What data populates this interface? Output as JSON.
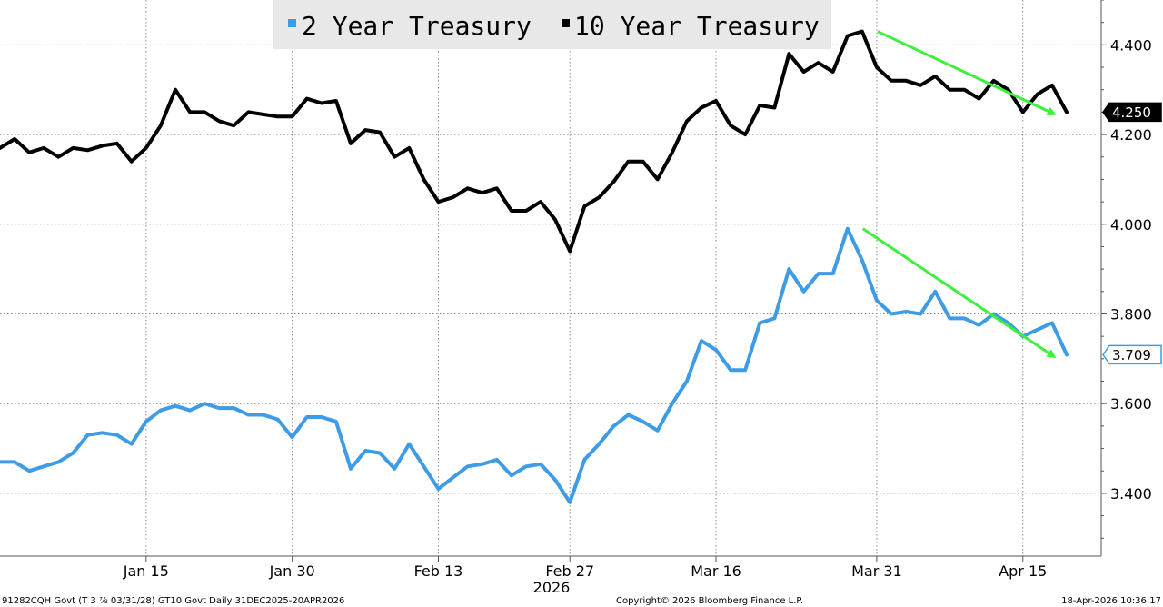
{
  "chart_data": {
    "type": "line",
    "legend": {
      "position": "top-center"
    },
    "x_tick_labels": [
      "Jan 15",
      "Jan 30",
      "Feb 13",
      "Feb 27",
      "Mar 16",
      "Mar 31",
      "Apr 15"
    ],
    "x_year_label": "2026",
    "y_tick_labels": [
      "4.400",
      "4.200",
      "4.000",
      "3.800",
      "3.600",
      "3.400"
    ],
    "ylim": [
      3.26,
      4.5
    ],
    "grid": true,
    "series": [
      {
        "name": "10 Year Treasury",
        "color": "#000000",
        "last_value": "4.250",
        "values": [
          4.17,
          4.19,
          4.16,
          4.17,
          4.15,
          4.17,
          4.165,
          4.175,
          4.18,
          4.14,
          4.17,
          4.22,
          4.3,
          4.25,
          4.25,
          4.23,
          4.22,
          4.25,
          4.245,
          4.24,
          4.24,
          4.28,
          4.27,
          4.275,
          4.18,
          4.21,
          4.205,
          4.15,
          4.17,
          4.1,
          4.05,
          4.06,
          4.08,
          4.07,
          4.08,
          4.03,
          4.03,
          4.05,
          4.01,
          3.94,
          4.04,
          4.06,
          4.095,
          4.14,
          4.14,
          4.1,
          4.16,
          4.23,
          4.26,
          4.275,
          4.22,
          4.2,
          4.265,
          4.26,
          4.38,
          4.34,
          4.36,
          4.34,
          4.42,
          4.43,
          4.35,
          4.32,
          4.32,
          4.31,
          4.33,
          4.3,
          4.3,
          4.28,
          4.32,
          4.3,
          4.25,
          4.29,
          4.31,
          4.25
        ]
      },
      {
        "name": "2 Year Treasury",
        "color": "#3e9be6",
        "last_value": "3.709",
        "values": [
          3.47,
          3.47,
          3.45,
          3.46,
          3.47,
          3.49,
          3.53,
          3.535,
          3.53,
          3.51,
          3.56,
          3.585,
          3.595,
          3.585,
          3.6,
          3.59,
          3.59,
          3.575,
          3.575,
          3.565,
          3.525,
          3.57,
          3.57,
          3.56,
          3.455,
          3.495,
          3.49,
          3.455,
          3.51,
          3.46,
          3.41,
          3.435,
          3.46,
          3.465,
          3.475,
          3.44,
          3.46,
          3.465,
          3.43,
          3.38,
          3.475,
          3.51,
          3.55,
          3.575,
          3.56,
          3.54,
          3.6,
          3.65,
          3.74,
          3.72,
          3.675,
          3.675,
          3.78,
          3.79,
          3.9,
          3.85,
          3.89,
          3.89,
          3.99,
          3.92,
          3.83,
          3.8,
          3.805,
          3.8,
          3.85,
          3.79,
          3.79,
          3.775,
          3.8,
          3.78,
          3.75,
          3.765,
          3.78,
          3.709
        ]
      }
    ],
    "trend_arrows": {
      "color": "#3cf03c"
    }
  },
  "footer": {
    "left": "91282CQH Govt (T 3 ⅞ 03/31/28) GT10  Govt Daily 31DEC2025-20APR2026",
    "center": "Copyright© 2026 Bloomberg Finance L.P.",
    "right": "18-Apr-2026 10:36:17"
  }
}
